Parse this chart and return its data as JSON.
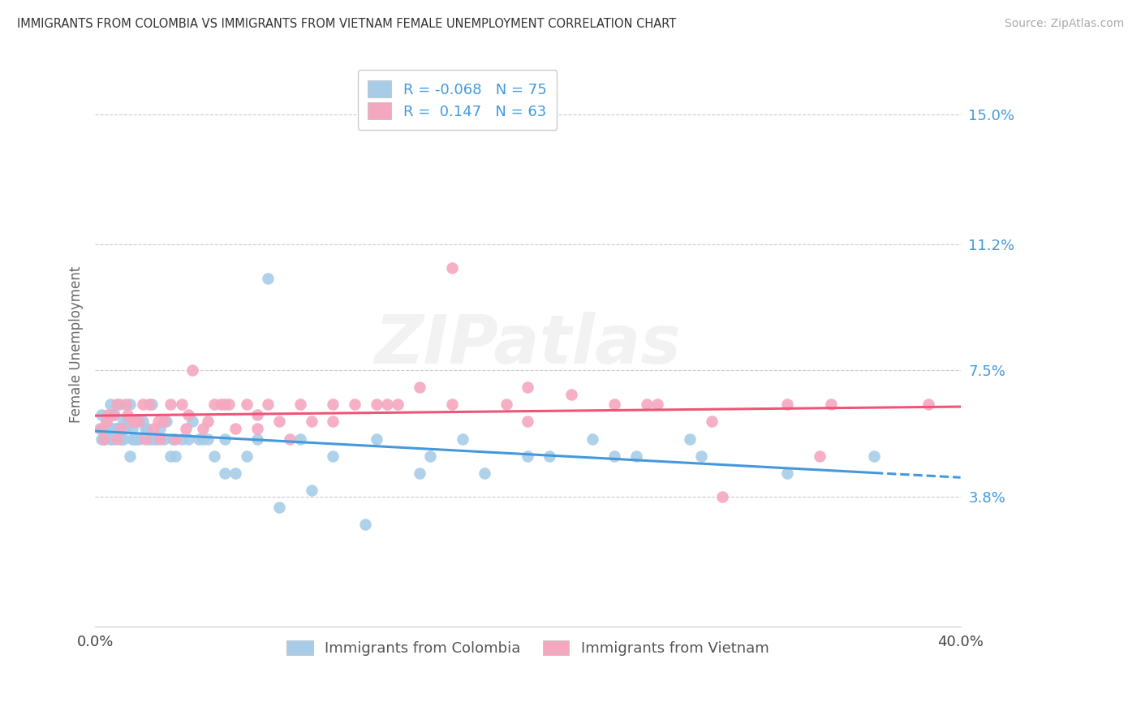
{
  "title": "IMMIGRANTS FROM COLOMBIA VS IMMIGRANTS FROM VIETNAM FEMALE UNEMPLOYMENT CORRELATION CHART",
  "source": "Source: ZipAtlas.com",
  "ylabel_label": "Female Unemployment",
  "colombia_color": "#a8cce8",
  "vietnam_color": "#f4a8c0",
  "colombia_line_color": "#4499dd",
  "vietnam_line_color": "#ee5577",
  "background_color": "#ffffff",
  "xlim": [
    0,
    40
  ],
  "ylim": [
    0,
    16.5
  ],
  "yticks": [
    3.8,
    7.5,
    11.2,
    15.0
  ],
  "ytick_labels": [
    "3.8%",
    "7.5%",
    "11.2%",
    "15.0%"
  ],
  "xtick_labels": [
    "0.0%",
    "40.0%"
  ],
  "colombia_R": -0.068,
  "vietnam_R": 0.147,
  "colombia_N": 75,
  "vietnam_N": 63,
  "colombia_scatter_x": [
    0.2,
    0.3,
    0.4,
    0.5,
    0.6,
    0.7,
    0.8,
    0.9,
    1.0,
    1.1,
    1.2,
    1.3,
    1.4,
    1.5,
    1.6,
    1.7,
    1.8,
    1.9,
    2.0,
    2.2,
    2.4,
    2.6,
    2.8,
    3.0,
    3.3,
    3.6,
    4.0,
    4.5,
    5.0,
    5.5,
    6.0,
    7.0,
    8.0,
    9.5,
    11.0,
    13.0,
    15.5,
    17.0,
    20.0,
    23.0,
    25.0,
    27.5,
    0.3,
    0.5,
    0.7,
    1.0,
    1.3,
    1.6,
    1.9,
    2.3,
    2.7,
    3.2,
    3.7,
    4.3,
    5.2,
    6.5,
    8.5,
    10.0,
    12.5,
    15.0,
    18.0,
    21.0,
    24.0,
    28.0,
    32.0,
    36.0,
    0.4,
    0.8,
    1.2,
    1.7,
    2.5,
    3.5,
    4.8,
    6.0,
    7.5
  ],
  "colombia_scatter_y": [
    5.8,
    6.2,
    5.5,
    6.0,
    5.8,
    6.5,
    5.5,
    6.2,
    5.8,
    6.5,
    5.5,
    6.0,
    5.8,
    6.0,
    6.5,
    5.8,
    5.5,
    6.0,
    5.5,
    6.0,
    5.8,
    6.5,
    5.5,
    5.8,
    6.0,
    5.5,
    5.5,
    6.0,
    5.5,
    5.0,
    4.5,
    5.0,
    10.2,
    5.5,
    5.0,
    5.5,
    5.0,
    5.5,
    5.0,
    5.5,
    5.0,
    5.5,
    5.5,
    5.8,
    5.5,
    5.8,
    5.5,
    5.0,
    5.5,
    5.8,
    5.5,
    5.5,
    5.0,
    5.5,
    5.5,
    4.5,
    3.5,
    4.0,
    3.0,
    4.5,
    4.5,
    5.0,
    5.0,
    5.0,
    4.5,
    5.0,
    5.5,
    5.8,
    5.5,
    5.5,
    5.5,
    5.0,
    5.5,
    5.5,
    5.5
  ],
  "vietnam_scatter_x": [
    0.3,
    0.6,
    1.0,
    1.4,
    1.8,
    2.2,
    2.7,
    3.2,
    3.7,
    4.3,
    5.0,
    5.8,
    6.5,
    7.5,
    8.5,
    10.0,
    12.0,
    14.0,
    16.5,
    19.0,
    22.0,
    25.5,
    29.0,
    34.0,
    38.5,
    0.4,
    0.8,
    1.2,
    1.7,
    2.3,
    2.9,
    3.5,
    4.2,
    5.2,
    6.2,
    7.5,
    9.0,
    11.0,
    13.5,
    16.5,
    20.0,
    24.0,
    28.5,
    33.5,
    1.0,
    2.0,
    3.0,
    4.5,
    6.0,
    8.0,
    11.0,
    15.0,
    20.0,
    26.0,
    32.0,
    0.5,
    1.5,
    2.5,
    4.0,
    5.5,
    7.0,
    9.5,
    13.0
  ],
  "vietnam_scatter_y": [
    5.8,
    6.2,
    5.5,
    6.5,
    6.0,
    6.5,
    5.8,
    6.0,
    5.5,
    6.2,
    5.8,
    6.5,
    5.8,
    6.2,
    6.0,
    6.0,
    6.5,
    6.5,
    10.5,
    6.5,
    6.8,
    6.5,
    3.8,
    6.5,
    6.5,
    5.5,
    6.2,
    5.8,
    6.0,
    5.5,
    6.0,
    6.5,
    5.8,
    6.0,
    6.5,
    5.8,
    5.5,
    6.0,
    6.5,
    6.5,
    6.0,
    6.5,
    6.0,
    5.0,
    6.5,
    6.0,
    5.5,
    7.5,
    6.5,
    6.5,
    6.5,
    7.0,
    7.0,
    6.5,
    6.5,
    6.0,
    6.2,
    6.5,
    6.5,
    6.5,
    6.5,
    6.5,
    6.5
  ]
}
